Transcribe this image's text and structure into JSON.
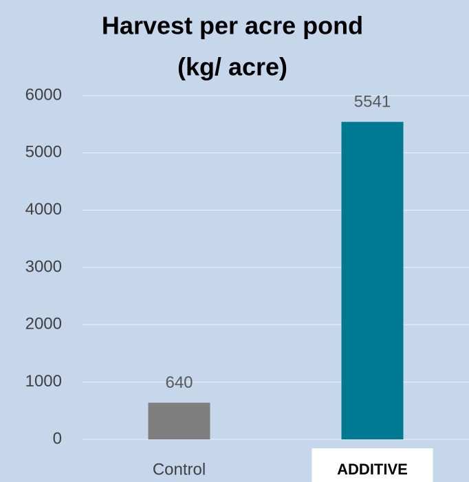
{
  "chart_data": {
    "type": "bar",
    "title": [
      "Harvest per acre pond",
      "(kg/ acre)"
    ],
    "categories": [
      "Control",
      "ADDITIVE"
    ],
    "values": [
      640,
      5541
    ],
    "colors": [
      "#7f7f7f",
      "#007a93"
    ],
    "category_label_boxes": [
      false,
      true
    ],
    "ylim": [
      0,
      6000
    ],
    "yticks": [
      0,
      1000,
      2000,
      3000,
      4000,
      5000,
      6000
    ],
    "grid": true
  }
}
